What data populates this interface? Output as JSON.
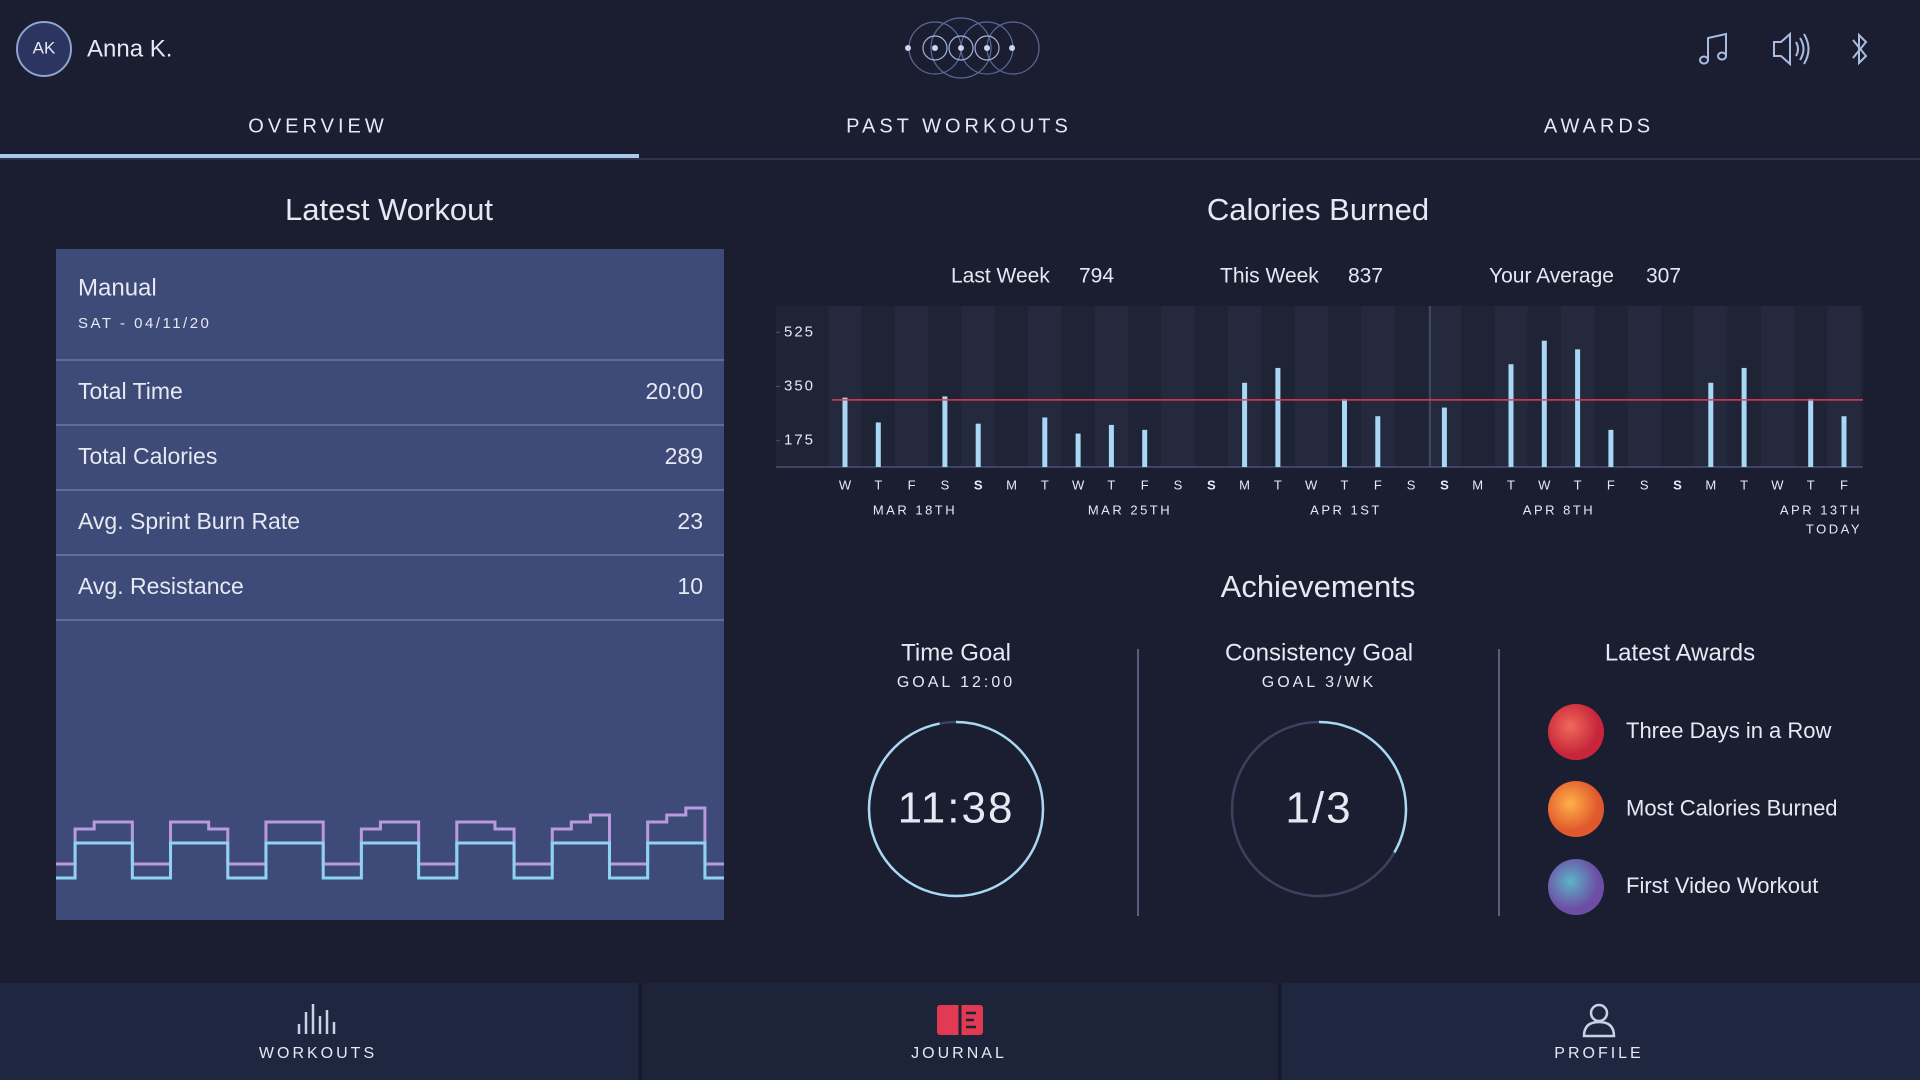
{
  "header": {
    "avatar": "AK",
    "user": "Anna K."
  },
  "tabs": [
    "OVERVIEW",
    "PAST WORKOUTS",
    "AWARDS"
  ],
  "latest_workout": {
    "title": "Latest Workout",
    "name": "Manual",
    "date": "SAT - 04/11/20",
    "rows": [
      [
        "Total Time",
        "20:00"
      ],
      [
        "Total Calories",
        289
      ],
      [
        "Avg. Sprint Burn Rate",
        23
      ],
      [
        "Avg. Resistance",
        10
      ]
    ]
  },
  "chart_data": [
    {
      "type": "bar",
      "title": "Calories Burned",
      "summary": [
        {
          "label": "Last Week",
          "value": 794
        },
        {
          "label": "This Week",
          "value": 837
        },
        {
          "label": "Your Average",
          "value": 307
        }
      ],
      "categories": [
        "W",
        "T",
        "F",
        "S",
        "S",
        "M",
        "T",
        "W",
        "T",
        "F",
        "S",
        "S",
        "M",
        "T",
        "W",
        "T",
        "F",
        "S",
        "S",
        "M",
        "T",
        "W",
        "T",
        "F",
        "S",
        "S",
        "M",
        "T",
        "W",
        "T",
        "F"
      ],
      "values": [
        314,
        234,
        null,
        318,
        230,
        null,
        250,
        198,
        226,
        210,
        null,
        null,
        362,
        410,
        null,
        310,
        254,
        null,
        282,
        null,
        422,
        498,
        470,
        210,
        null,
        null,
        362,
        410,
        null,
        310,
        254
      ],
      "ylim": [
        90,
        610
      ],
      "yticks": [
        175,
        350,
        525
      ],
      "date_labels": [
        "MAR 18TH",
        "MAR 25TH",
        "APR 1ST",
        "APR 8TH",
        "APR 13TH"
      ],
      "today_label": "TODAY",
      "color": "#a8d8f5",
      "average_color": "#e23a52"
    },
    {
      "type": "line",
      "step": true,
      "ylim": [
        0,
        10
      ],
      "series": [
        {
          "color": "#b89ae0",
          "values": [
            4,
            6.5,
            7,
            7,
            4,
            4,
            7,
            7,
            6.5,
            4,
            4,
            7,
            7,
            7,
            4,
            4,
            6.5,
            7,
            7,
            4,
            4,
            7,
            7,
            6.5,
            4,
            4,
            6.5,
            7,
            7.5,
            4,
            4,
            7,
            7.5,
            8,
            4
          ]
        },
        {
          "color": "#8fd3f2",
          "values": [
            3,
            5.5,
            5.5,
            5.5,
            3,
            3,
            5.5,
            5.5,
            5.5,
            3,
            3,
            5.5,
            5.5,
            5.5,
            3,
            3,
            5.5,
            5.5,
            5.5,
            3,
            3,
            5.5,
            5.5,
            5.5,
            3,
            3,
            5.5,
            5.5,
            5.5,
            3,
            3,
            5.5,
            5.5,
            5.5,
            3
          ]
        }
      ]
    }
  ],
  "achievements": {
    "title": "Achievements",
    "goals": [
      {
        "title": "Time Goal",
        "goal": "GOAL 12:00",
        "value": "11:38"
      },
      {
        "title": "Consistency Goal",
        "goal": "GOAL 3/WK",
        "value": "1/3"
      }
    ],
    "awards_title": "Latest Awards",
    "awards": [
      "Three Days in a Row",
      "Most Calories Burned",
      "First Video Workout"
    ]
  },
  "nav": [
    "WORKOUTS",
    "JOURNAL",
    "PROFILE"
  ]
}
